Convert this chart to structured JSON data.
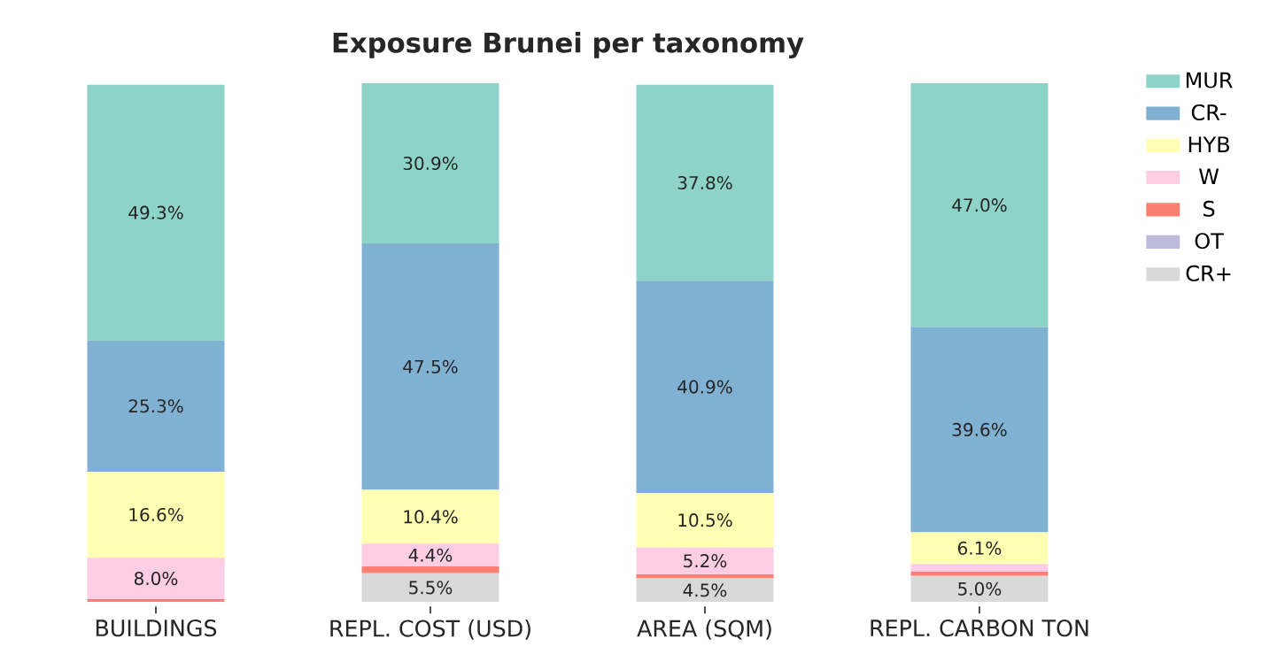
{
  "chart_data": {
    "type": "bar",
    "title": "Exposure Brunei per taxonomy",
    "stacked": true,
    "legend": "top right",
    "categories": [
      "BUILDINGS",
      "REPL. COST (USD)",
      "AREA (SQM)",
      "REPL. CARBON TON"
    ],
    "series": [
      {
        "name": "CR+",
        "color": "#d9d9d9",
        "values": [
          0,
          5.5,
          4.5,
          5.0
        ],
        "value_labels": [
          null,
          "5.5%",
          "4.5%",
          "5.0%"
        ]
      },
      {
        "name": "OT",
        "color": "#bebada",
        "values": [
          null,
          0,
          null,
          0
        ],
        "value_labels": [
          null,
          null,
          null,
          null
        ]
      },
      {
        "name": "S",
        "color": "#fb8072",
        "values": [
          0.5,
          1.3,
          0.8,
          0.8
        ],
        "value_labels": [
          null,
          null,
          null,
          null
        ]
      },
      {
        "name": "W",
        "color": "#fccde5",
        "values": [
          8.0,
          4.4,
          5.2,
          1.5
        ],
        "value_labels": [
          "8.0%",
          "4.4%",
          "5.2%",
          null
        ]
      },
      {
        "name": "HYB",
        "color": "#ffffb3",
        "values": [
          16.6,
          10.4,
          10.5,
          6.1
        ],
        "value_labels": [
          "16.6%",
          "10.4%",
          "10.5%",
          "6.1%"
        ]
      },
      {
        "name": "CR-",
        "color": "#80b1d3",
        "values": [
          25.3,
          47.5,
          40.9,
          39.6
        ],
        "value_labels": [
          "25.3%",
          "47.5%",
          "40.9%",
          "39.6%"
        ]
      },
      {
        "name": "MUR",
        "color": "#8dd3c7",
        "values": [
          49.3,
          30.9,
          37.8,
          47.0
        ],
        "value_labels": [
          "49.3%",
          "30.9%",
          "37.8%",
          "47.0%"
        ]
      }
    ]
  }
}
